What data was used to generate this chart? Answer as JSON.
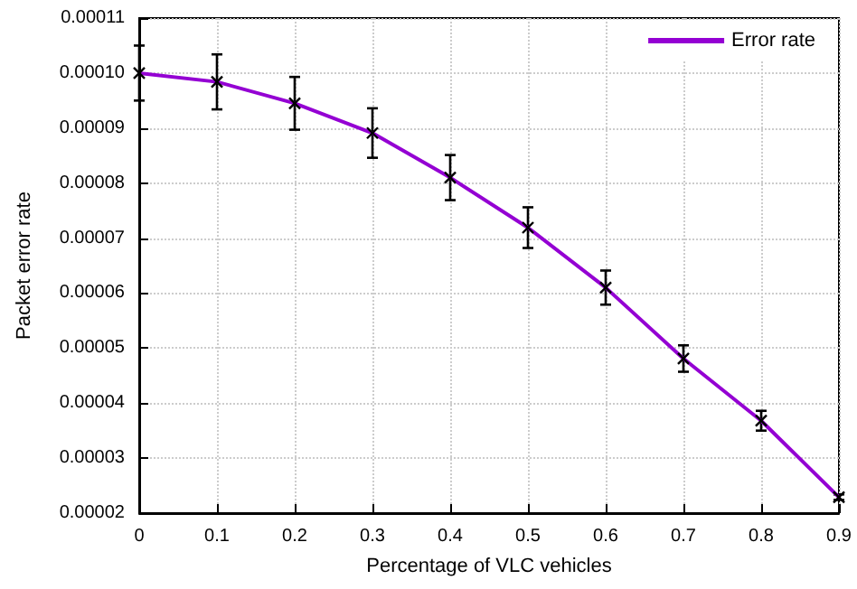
{
  "chart_data": {
    "type": "line",
    "xlabel": "Percentage of VLC vehicles",
    "ylabel": "Packet error rate",
    "x": [
      0,
      0.1,
      0.2,
      0.3,
      0.4,
      0.5,
      0.6,
      0.7,
      0.8,
      0.9
    ],
    "series": [
      {
        "name": "Error rate",
        "color": "#9400d3",
        "values": [
          0.0001,
          9.84e-05,
          9.45e-05,
          8.91e-05,
          8.1e-05,
          7.19e-05,
          6.1e-05,
          4.81e-05,
          3.68e-05,
          2.29e-05
        ],
        "errors": [
          5e-06,
          5e-06,
          4.8e-06,
          4.5e-06,
          4.1e-06,
          3.7e-06,
          3.1e-06,
          2.4e-06,
          1.8e-06,
          5e-07
        ]
      }
    ],
    "xlim": [
      0,
      0.9
    ],
    "xticks": [
      0,
      0.1,
      0.2,
      0.3,
      0.4,
      0.5,
      0.6,
      0.7,
      0.8,
      0.9
    ],
    "ylim": [
      2e-05,
      0.00011
    ],
    "yticks": [
      {
        "value": 2e-05,
        "label": "0.00002"
      },
      {
        "value": 3e-05,
        "label": "0.00003"
      },
      {
        "value": 4e-05,
        "label": "0.00004"
      },
      {
        "value": 5e-05,
        "label": "0.00005"
      },
      {
        "value": 6e-05,
        "label": "0.00006"
      },
      {
        "value": 7e-05,
        "label": "0.00007"
      },
      {
        "value": 8e-05,
        "label": "0.00008"
      },
      {
        "value": 9e-05,
        "label": "0.00009"
      },
      {
        "value": 0.0001,
        "label": "0.00010"
      },
      {
        "value": 0.00011,
        "label": "0.00011"
      }
    ],
    "grid": true,
    "legend": "top right",
    "marker": "cross",
    "line_style": "solid"
  }
}
